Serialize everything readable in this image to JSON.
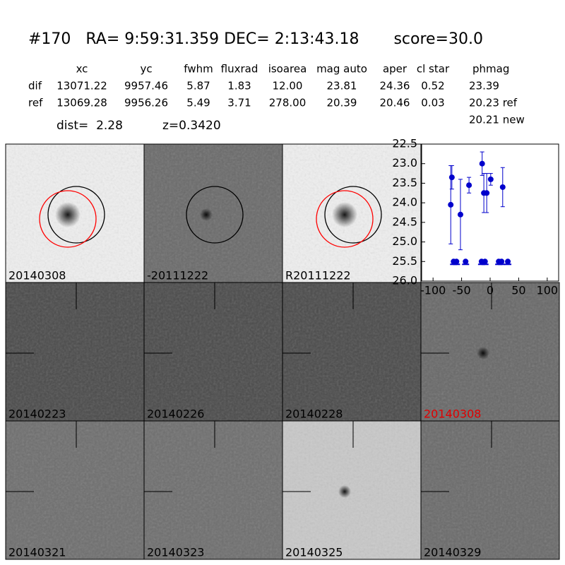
{
  "header": {
    "title": "#170   RA= 9:59:31.359 DEC= 2:13:43.18       score=30.0"
  },
  "table": {
    "columns": [
      "xc",
      "yc",
      "fwhm",
      "fluxrad",
      "isoarea",
      "mag auto",
      "aper",
      "cl star",
      "phmag"
    ],
    "rows": [
      [
        "dif",
        "13071.22",
        "9957.46",
        "5.87",
        "1.83",
        "12.00",
        "23.81",
        "24.36",
        "0.52",
        "23.39"
      ],
      [
        "ref",
        "13069.28",
        "9956.26",
        "5.49",
        "3.71",
        "278.00",
        "20.39",
        "20.46",
        "0.03",
        "20.23 ref"
      ]
    ],
    "extra": "20.21 new"
  },
  "dist": "dist=  2.28",
  "z": "z=0.3420",
  "stamps": [
    {
      "label": "20140308",
      "background": "#efefef",
      "spot": "#222",
      "circles": [
        "black",
        "red"
      ]
    },
    {
      "label": "-20111222",
      "background": "#6a6a6a",
      "spot": "#111",
      "circles": [
        "black"
      ]
    },
    {
      "label": "R20111222",
      "background": "#efefef",
      "spot": "#222",
      "circles": [
        "black",
        "red"
      ]
    },
    {
      "label": "20140223",
      "background": "#4a4a4a",
      "cross": true
    },
    {
      "label": "20140226",
      "background": "#4a4a4a",
      "cross": true
    },
    {
      "label": "20140228",
      "background": "#4a4a4a",
      "cross": true
    },
    {
      "label": "20140308",
      "background": "#686868",
      "spot": "#111",
      "cross": true,
      "label_color": "#e00000"
    },
    {
      "label": "20140321",
      "background": "#6e6e6e",
      "cross": true
    },
    {
      "label": "20140323",
      "background": "#6e6e6e",
      "cross": true
    },
    {
      "label": "20140325",
      "background": "#c8c8c8",
      "spot": "#111",
      "cross": true
    },
    {
      "label": "20140329",
      "background": "#6a6a6a",
      "cross": true
    }
  ],
  "chart_data": {
    "type": "scatter",
    "xlim": [
      -120,
      120
    ],
    "ylim": [
      26.0,
      22.5
    ],
    "y_inverted": true,
    "xticks": [
      -100,
      -50,
      0,
      50,
      100
    ],
    "yticks": [
      22.5,
      {
        "value": 23.0,
        "label": "23.0"
      },
      23.5,
      {
        "value": 24.0,
        "label": "24.0"
      },
      24.5,
      {
        "value": 25.0,
        "label": "25.0"
      },
      25.5,
      {
        "value": 26.0,
        "label": "26.0"
      }
    ],
    "series": [
      {
        "color": "#0000cc",
        "x": [
          -69,
          -67,
          -52,
          -37,
          -14,
          -11,
          -6,
          1,
          22
        ],
        "values": [
          24.05,
          23.35,
          24.3,
          23.55,
          23.0,
          23.75,
          23.75,
          23.4,
          23.6
        ],
        "errors": [
          1.0,
          0.3,
          0.9,
          0.2,
          0.3,
          0.5,
          0.5,
          0.15,
          0.5
        ]
      },
      {
        "color": "#0000cc",
        "x": [
          -64,
          -59,
          -43,
          -15,
          -9,
          15,
          20,
          31
        ],
        "values": [
          25.5,
          25.5,
          25.5,
          25.5,
          25.5,
          25.5,
          25.5,
          25.5
        ],
        "limit": true
      }
    ]
  }
}
